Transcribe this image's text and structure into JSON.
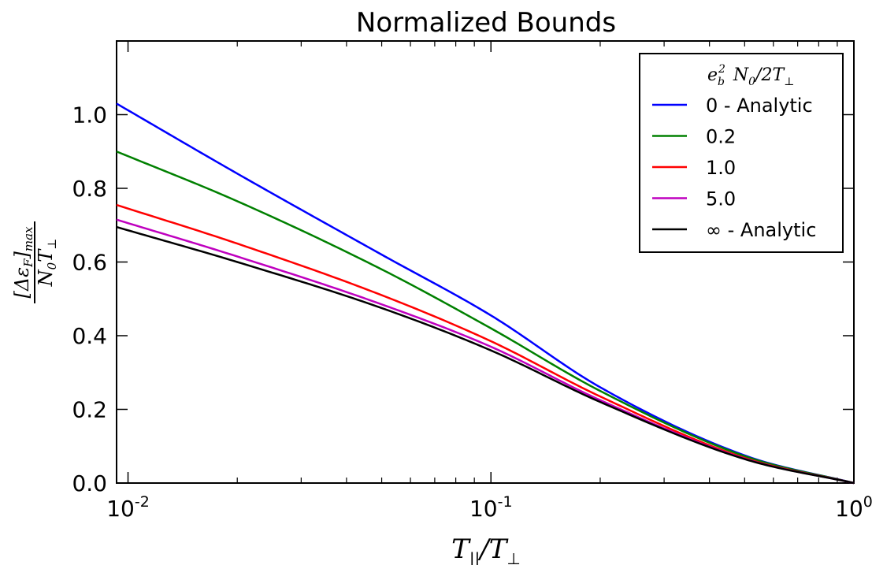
{
  "chart_data": {
    "type": "line",
    "title": "Normalized Bounds",
    "xscale": "log",
    "xlim": [
      0.0093,
      1.0
    ],
    "ylim": [
      0.0,
      1.2
    ],
    "x_ticks": [
      {
        "value": 0.01,
        "base": "10",
        "exp": "-2"
      },
      {
        "value": 0.1,
        "base": "10",
        "exp": "-1"
      },
      {
        "value": 1.0,
        "base": "10",
        "exp": "0"
      }
    ],
    "y_ticks": [
      0.0,
      0.2,
      0.4,
      0.6,
      0.8,
      1.0
    ],
    "y_tick_labels": [
      "0.0",
      "0.2",
      "0.4",
      "0.6",
      "0.8",
      "1.0"
    ],
    "xlabel": {
      "main": "T",
      "sub1": "||",
      "slash": "/",
      "main2": "T",
      "sub2": "⊥"
    },
    "ylabel": {
      "num": "[Δε",
      "num_sub": "F",
      "num_close": "]",
      "num_sub2": "max",
      "den": "N",
      "den_sub": "0",
      "den2": "T",
      "den_sub2": "⊥"
    },
    "legend": {
      "title": {
        "a": "e",
        "a_sub": "b",
        "a_sup": "2",
        "b": "N",
        "b_sub": "0",
        "c": "/2T",
        "c_sub": "⊥"
      },
      "placement": "upper right"
    },
    "series": [
      {
        "name": "0 - Analytic",
        "color": "#0000ff",
        "x": [
          0.0093,
          0.02,
          0.05,
          0.1,
          0.2,
          0.5,
          1.0
        ],
        "y": [
          1.03,
          0.84,
          0.62,
          0.455,
          0.26,
          0.075,
          0.0
        ]
      },
      {
        "name": "0.2",
        "color": "#008000",
        "x": [
          0.0093,
          0.02,
          0.05,
          0.1,
          0.2,
          0.5,
          1.0
        ],
        "y": [
          0.9,
          0.765,
          0.58,
          0.42,
          0.25,
          0.073,
          0.0
        ]
      },
      {
        "name": "1.0",
        "color": "#ff0000",
        "x": [
          0.0093,
          0.02,
          0.05,
          0.1,
          0.2,
          0.5,
          1.0
        ],
        "y": [
          0.755,
          0.65,
          0.51,
          0.385,
          0.235,
          0.068,
          0.0
        ]
      },
      {
        "name": "5.0",
        "color": "#bf00bf",
        "x": [
          0.0093,
          0.02,
          0.05,
          0.1,
          0.2,
          0.5,
          1.0
        ],
        "y": [
          0.715,
          0.615,
          0.485,
          0.37,
          0.225,
          0.066,
          0.0
        ]
      },
      {
        "name": "∞ - Analytic",
        "color": "#000000",
        "x": [
          0.0093,
          0.02,
          0.05,
          0.1,
          0.2,
          0.5,
          1.0
        ],
        "y": [
          0.695,
          0.6,
          0.475,
          0.36,
          0.22,
          0.065,
          0.0
        ]
      }
    ]
  }
}
